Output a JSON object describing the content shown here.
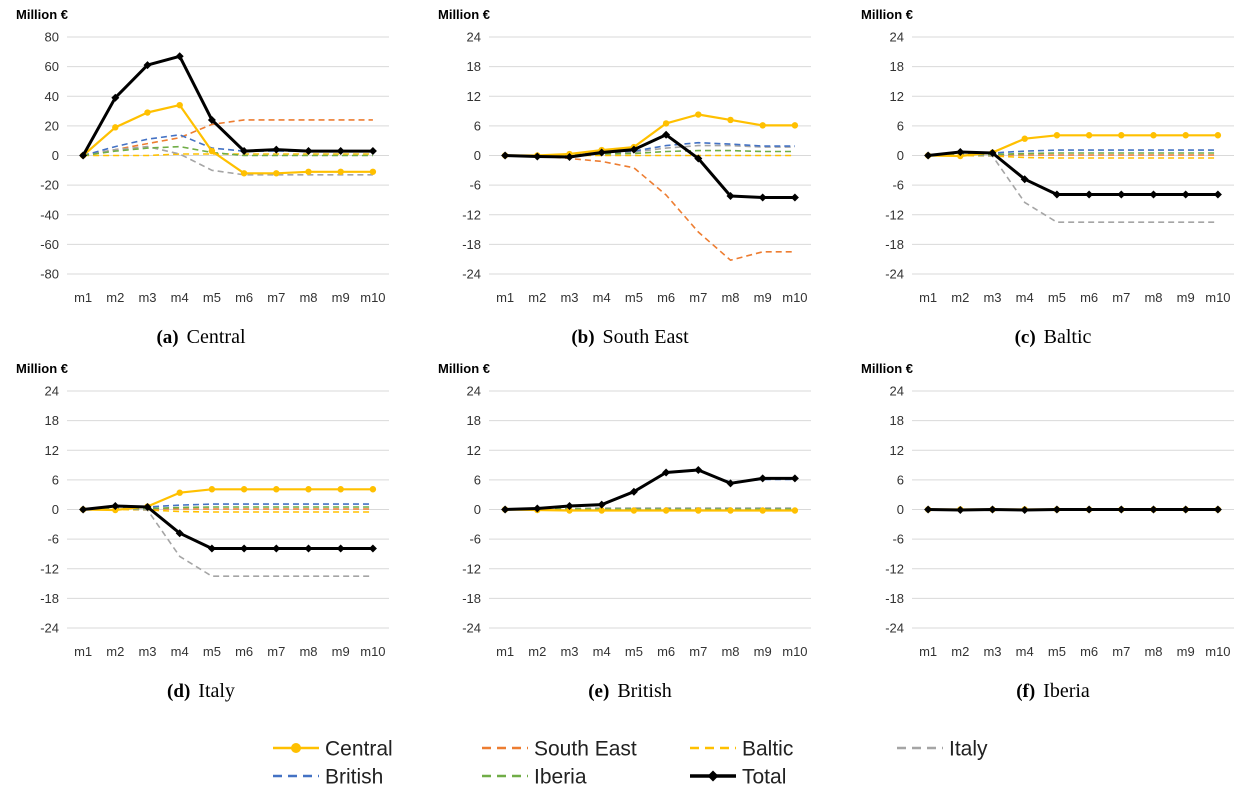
{
  "colors": {
    "Central": "#FFC000",
    "South East": "#ED7D31",
    "Baltic": "#FFC000",
    "Italy": "#A5A5A5",
    "British": "#4472C4",
    "Iberia": "#70AD47",
    "Total": "#000000"
  },
  "legend": [
    {
      "name": "Central",
      "style": "solid-marker"
    },
    {
      "name": "South East",
      "style": "dashed"
    },
    {
      "name": "Baltic",
      "style": "dashed"
    },
    {
      "name": "Italy",
      "style": "dashed"
    },
    {
      "name": "British",
      "style": "dashed"
    },
    {
      "name": "Iberia",
      "style": "dashed"
    },
    {
      "name": "Total",
      "style": "solid-diamond"
    }
  ],
  "chart_data": [
    {
      "type": "line",
      "caption_letter": "(a)",
      "caption_title": "Central",
      "ylabel": "Million €",
      "categories": [
        "m1",
        "m2",
        "m3",
        "m4",
        "m5",
        "m6",
        "m7",
        "m8",
        "m9",
        "m10"
      ],
      "yticks": [
        80,
        60,
        40,
        20,
        0,
        -20,
        -40,
        -60,
        -80
      ],
      "ylim": [
        -80,
        80
      ],
      "series": [
        {
          "name": "Central",
          "values": [
            0,
            19,
            29,
            34,
            3,
            -12,
            -12,
            -11,
            -11,
            -11
          ]
        },
        {
          "name": "South East",
          "values": [
            0,
            4,
            8,
            12,
            21,
            24,
            24,
            24,
            24,
            24
          ]
        },
        {
          "name": "Baltic",
          "values": [
            0,
            0,
            0,
            1,
            1,
            1,
            1,
            1,
            1,
            1
          ]
        },
        {
          "name": "Italy",
          "values": [
            0,
            4,
            6,
            1,
            -10,
            -13,
            -13,
            -13,
            -13,
            -13
          ]
        },
        {
          "name": "British",
          "values": [
            0,
            6,
            11,
            14,
            5,
            3,
            3,
            3,
            3,
            3
          ]
        },
        {
          "name": "Iberia",
          "values": [
            0,
            3,
            5,
            6,
            2,
            0,
            0,
            0,
            0,
            0
          ]
        },
        {
          "name": "Total",
          "values": [
            0,
            39,
            61,
            67,
            24,
            3,
            4,
            3,
            3,
            3
          ]
        }
      ]
    },
    {
      "type": "line",
      "caption_letter": "(b)",
      "caption_title": "South East",
      "ylabel": "Million €",
      "categories": [
        "m1",
        "m2",
        "m3",
        "m4",
        "m5",
        "m6",
        "m7",
        "m8",
        "m9",
        "m10"
      ],
      "yticks": [
        24,
        18,
        12,
        6,
        0,
        -6,
        -12,
        -18,
        -24
      ],
      "ylim": [
        -24,
        24
      ],
      "series": [
        {
          "name": "Central",
          "values": [
            0,
            0,
            0.3,
            1.1,
            1.7,
            6.5,
            8.3,
            7.2,
            6.1,
            6.1
          ]
        },
        {
          "name": "South East",
          "values": [
            0,
            0,
            -0.6,
            -1.2,
            -2.5,
            -8.0,
            -15.5,
            -21.2,
            -19.5,
            -19.5
          ]
        },
        {
          "name": "Baltic",
          "values": [
            0,
            0,
            0,
            0,
            0,
            0,
            0,
            0,
            0,
            0
          ]
        },
        {
          "name": "Italy",
          "values": [
            0,
            0,
            0.2,
            0.5,
            0.7,
            1.5,
            2.0,
            2.0,
            1.7,
            1.7
          ]
        },
        {
          "name": "British",
          "values": [
            0,
            0,
            0.2,
            0.6,
            0.9,
            2.0,
            2.6,
            2.3,
            1.9,
            1.9
          ]
        },
        {
          "name": "Iberia",
          "values": [
            0,
            0,
            0.1,
            0.3,
            0.4,
            0.8,
            1.0,
            1.0,
            0.8,
            0.8
          ]
        },
        {
          "name": "Total",
          "values": [
            0,
            -0.2,
            -0.3,
            0.6,
            1.2,
            4.2,
            -0.6,
            -8.2,
            -8.5,
            -8.5
          ]
        }
      ]
    },
    {
      "type": "line",
      "caption_letter": "(c)",
      "caption_title": "Baltic",
      "ylabel": "Million €",
      "categories": [
        "m1",
        "m2",
        "m3",
        "m4",
        "m5",
        "m6",
        "m7",
        "m8",
        "m9",
        "m10"
      ],
      "yticks": [
        24,
        18,
        12,
        6,
        0,
        -6,
        -12,
        -18,
        -24
      ],
      "ylim": [
        -24,
        24
      ],
      "series": [
        {
          "name": "Central",
          "values": [
            0,
            -0.1,
            0.6,
            3.4,
            4.1,
            4.1,
            4.1,
            4.1,
            4.1,
            4.1
          ]
        },
        {
          "name": "South East",
          "values": [
            0,
            0.1,
            0.1,
            0.1,
            0.1,
            0.1,
            0.1,
            0.1,
            0.1,
            0.1
          ]
        },
        {
          "name": "Baltic",
          "values": [
            0,
            0,
            -0.1,
            -0.4,
            -0.5,
            -0.5,
            -0.5,
            -0.5,
            -0.5,
            -0.5
          ]
        },
        {
          "name": "Italy",
          "values": [
            0,
            0.2,
            -0.1,
            -9.5,
            -13.5,
            -13.5,
            -13.5,
            -13.5,
            -13.5,
            -13.5
          ]
        },
        {
          "name": "British",
          "values": [
            0,
            0.3,
            0.5,
            0.9,
            1.1,
            1.1,
            1.1,
            1.1,
            1.1,
            1.1
          ]
        },
        {
          "name": "Iberia",
          "values": [
            0,
            0.1,
            0.2,
            0.4,
            0.5,
            0.5,
            0.5,
            0.5,
            0.5,
            0.5
          ]
        },
        {
          "name": "Total",
          "values": [
            0,
            0.7,
            0.5,
            -4.8,
            -7.9,
            -7.9,
            -7.9,
            -7.9,
            -7.9,
            -7.9
          ]
        }
      ]
    },
    {
      "type": "line",
      "caption_letter": "(d)",
      "caption_title": "Italy",
      "ylabel": "Million €",
      "categories": [
        "m1",
        "m2",
        "m3",
        "m4",
        "m5",
        "m6",
        "m7",
        "m8",
        "m9",
        "m10"
      ],
      "yticks": [
        24,
        18,
        12,
        6,
        0,
        -6,
        -12,
        -18,
        -24
      ],
      "ylim": [
        -24,
        24
      ],
      "series": [
        {
          "name": "Central",
          "values": [
            0,
            -0.1,
            0.6,
            3.4,
            4.1,
            4.1,
            4.1,
            4.1,
            4.1,
            4.1
          ]
        },
        {
          "name": "South East",
          "values": [
            0,
            0.1,
            0.1,
            0.1,
            0.1,
            0.1,
            0.1,
            0.1,
            0.1,
            0.1
          ]
        },
        {
          "name": "Baltic",
          "values": [
            0,
            0,
            -0.1,
            -0.4,
            -0.5,
            -0.5,
            -0.5,
            -0.5,
            -0.5,
            -0.5
          ]
        },
        {
          "name": "Italy",
          "values": [
            0,
            0.2,
            -0.1,
            -9.5,
            -13.5,
            -13.5,
            -13.5,
            -13.5,
            -13.5,
            -13.5
          ]
        },
        {
          "name": "British",
          "values": [
            0,
            0.3,
            0.5,
            0.9,
            1.1,
            1.1,
            1.1,
            1.1,
            1.1,
            1.1
          ]
        },
        {
          "name": "Iberia",
          "values": [
            0,
            0.1,
            0.2,
            0.4,
            0.5,
            0.5,
            0.5,
            0.5,
            0.5,
            0.5
          ]
        },
        {
          "name": "Total",
          "values": [
            0,
            0.7,
            0.5,
            -4.8,
            -7.9,
            -7.9,
            -7.9,
            -7.9,
            -7.9,
            -7.9
          ]
        }
      ]
    },
    {
      "type": "line",
      "caption_letter": "(e)",
      "caption_title": "British",
      "ylabel": "Million €",
      "categories": [
        "m1",
        "m2",
        "m3",
        "m4",
        "m5",
        "m6",
        "m7",
        "m8",
        "m9",
        "m10"
      ],
      "yticks": [
        24,
        18,
        12,
        6,
        0,
        -6,
        -12,
        -18,
        -24
      ],
      "ylim": [
        -24,
        24
      ],
      "series": [
        {
          "name": "Central",
          "values": [
            0,
            -0.1,
            -0.2,
            -0.2,
            -0.2,
            -0.2,
            -0.2,
            -0.2,
            -0.2,
            -0.2
          ]
        },
        {
          "name": "South East",
          "values": [
            0,
            0,
            0.1,
            0.1,
            0.1,
            0.1,
            0.1,
            0.1,
            0.1,
            0.1
          ]
        },
        {
          "name": "Baltic",
          "values": [
            0,
            0,
            0,
            0,
            0,
            0,
            0,
            0,
            0,
            0
          ]
        },
        {
          "name": "Italy",
          "values": [
            0,
            0.1,
            0.2,
            0.3,
            0.3,
            0.3,
            0.3,
            0.3,
            0.3,
            0.3
          ]
        },
        {
          "name": "British",
          "values": [
            0,
            0.3,
            0.7,
            0.9,
            3.5,
            7.4,
            7.9,
            5.5,
            6.1,
            6.1
          ]
        },
        {
          "name": "Iberia",
          "values": [
            0,
            0,
            0.1,
            0.1,
            0.1,
            0.1,
            0.1,
            0.1,
            0.1,
            0.1
          ]
        },
        {
          "name": "Total",
          "values": [
            0,
            0.2,
            0.7,
            1.0,
            3.6,
            7.5,
            8.0,
            5.3,
            6.3,
            6.3
          ]
        }
      ]
    },
    {
      "type": "line",
      "caption_letter": "(f)",
      "caption_title": "Iberia",
      "ylabel": "Million €",
      "categories": [
        "m1",
        "m2",
        "m3",
        "m4",
        "m5",
        "m6",
        "m7",
        "m8",
        "m9",
        "m10"
      ],
      "yticks": [
        24,
        18,
        12,
        6,
        0,
        -6,
        -12,
        -18,
        -24
      ],
      "ylim": [
        -24,
        24
      ],
      "series": [
        {
          "name": "Central",
          "values": [
            0,
            0,
            0,
            0,
            0,
            0,
            0,
            0,
            0,
            0
          ]
        },
        {
          "name": "South East",
          "values": [
            0,
            0,
            0,
            0,
            0,
            0,
            0,
            0,
            0,
            0
          ]
        },
        {
          "name": "Baltic",
          "values": [
            0,
            0,
            0,
            0,
            0,
            0,
            0,
            0,
            0,
            0
          ]
        },
        {
          "name": "Italy",
          "values": [
            0,
            0,
            0,
            0,
            0,
            0,
            0,
            0,
            0,
            0
          ]
        },
        {
          "name": "British",
          "values": [
            0,
            0,
            0,
            0,
            0,
            0,
            0,
            0,
            0,
            0
          ]
        },
        {
          "name": "Iberia",
          "values": [
            0,
            0,
            0,
            0,
            0,
            0,
            0,
            0,
            0,
            0
          ]
        },
        {
          "name": "Total",
          "values": [
            0,
            -0.1,
            0,
            -0.1,
            0,
            0,
            0,
            0,
            0,
            0
          ]
        }
      ]
    }
  ]
}
